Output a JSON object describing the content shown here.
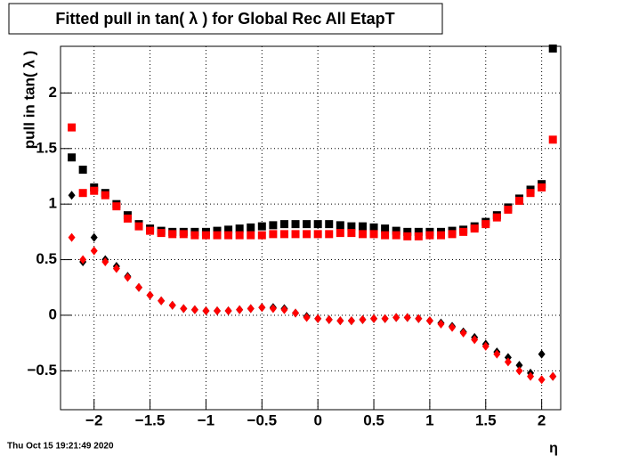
{
  "chart_data": {
    "type": "scatter",
    "title": "Fitted pull in tan( λ ) for Global Rec All EtapT",
    "y_label": "pull in tan( λ )",
    "x_label": "η",
    "timestamp": "Thu Oct 15 19:21:49 2020",
    "xlim": [
      -2.3,
      2.17
    ],
    "ylim": [
      -0.85,
      2.42
    ],
    "xticks": [
      {
        "value": -2,
        "label": "−2"
      },
      {
        "value": -1.5,
        "label": "−1.5"
      },
      {
        "value": -1,
        "label": "−1"
      },
      {
        "value": -0.5,
        "label": "−0.5"
      },
      0,
      0.5,
      1,
      1.5,
      2
    ],
    "yticks": [
      {
        "value": -0.5,
        "label": "−0.5"
      },
      0,
      0.5,
      1,
      1.5,
      2
    ],
    "grid": true,
    "x": [
      -2.2,
      -2.1,
      -2.0,
      -1.9,
      -1.8,
      -1.7,
      -1.6,
      -1.5,
      -1.4,
      -1.3,
      -1.2,
      -1.1,
      -1.0,
      -0.9,
      -0.8,
      -0.7,
      -0.6,
      -0.5,
      -0.4,
      -0.3,
      -0.2,
      -0.1,
      0,
      0.1,
      0.2,
      0.3,
      0.4,
      0.5,
      0.6,
      0.7,
      0.8,
      0.9,
      1.0,
      1.1,
      1.2,
      1.3,
      1.4,
      1.5,
      1.6,
      1.7,
      1.8,
      1.9,
      2.0,
      2.1
    ],
    "series": [
      {
        "color": "#000000",
        "marker": "square",
        "values": [
          1.42,
          1.31,
          1.15,
          1.1,
          1.0,
          0.9,
          0.82,
          0.78,
          0.76,
          0.75,
          0.75,
          0.75,
          0.75,
          0.76,
          0.77,
          0.78,
          0.79,
          0.8,
          0.81,
          0.82,
          0.82,
          0.82,
          0.82,
          0.82,
          0.81,
          0.8,
          0.8,
          0.79,
          0.78,
          0.76,
          0.75,
          0.75,
          0.75,
          0.75,
          0.76,
          0.77,
          0.8,
          0.84,
          0.9,
          0.97,
          1.05,
          1.13,
          1.18,
          2.4
        ]
      },
      {
        "color": "#ff0000",
        "marker": "square",
        "values": [
          1.69,
          1.1,
          1.12,
          1.08,
          0.98,
          0.87,
          0.8,
          0.76,
          0.74,
          0.73,
          0.73,
          0.72,
          0.72,
          0.72,
          0.72,
          0.72,
          0.72,
          0.72,
          0.73,
          0.73,
          0.73,
          0.73,
          0.73,
          0.73,
          0.74,
          0.74,
          0.73,
          0.73,
          0.72,
          0.72,
          0.71,
          0.71,
          0.72,
          0.72,
          0.73,
          0.75,
          0.78,
          0.82,
          0.88,
          0.95,
          1.03,
          1.1,
          1.15,
          1.58
        ]
      },
      {
        "color": "#000000",
        "marker": "diamond",
        "values": [
          1.08,
          0.48,
          0.7,
          0.5,
          0.44,
          0.35,
          0.25,
          0.18,
          0.13,
          0.09,
          0.06,
          0.05,
          0.04,
          0.04,
          0.04,
          0.05,
          0.06,
          0.07,
          0.07,
          0.06,
          0.02,
          -0.01,
          -0.03,
          -0.04,
          -0.05,
          -0.05,
          -0.04,
          -0.03,
          -0.03,
          -0.02,
          -0.02,
          -0.03,
          -0.05,
          -0.07,
          -0.1,
          -0.15,
          -0.2,
          -0.26,
          -0.33,
          -0.38,
          -0.45,
          -0.52,
          -0.35,
          -0.55
        ]
      },
      {
        "color": "#ff0000",
        "marker": "diamond",
        "values": [
          0.7,
          0.5,
          0.58,
          0.48,
          0.42,
          0.34,
          0.25,
          0.18,
          0.13,
          0.09,
          0.06,
          0.05,
          0.04,
          0.04,
          0.04,
          0.05,
          0.06,
          0.07,
          0.06,
          0.05,
          0.02,
          -0.02,
          -0.03,
          -0.04,
          -0.05,
          -0.05,
          -0.04,
          -0.03,
          -0.03,
          -0.02,
          -0.02,
          -0.03,
          -0.05,
          -0.08,
          -0.11,
          -0.16,
          -0.22,
          -0.28,
          -0.35,
          -0.42,
          -0.5,
          -0.55,
          -0.58,
          -0.55
        ]
      }
    ]
  }
}
